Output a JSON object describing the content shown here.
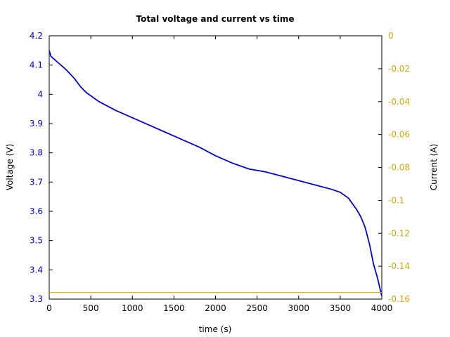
{
  "chart_data": {
    "type": "line",
    "title": "Total voltage and current vs time",
    "xlabel": "time (s)",
    "ylabel_left": "Voltage (V)",
    "ylabel_right": "Current (A)",
    "xlim": [
      0,
      4000
    ],
    "ylim_left": [
      3.3,
      4.2
    ],
    "ylim_right": [
      -0.16,
      0
    ],
    "x_ticks": [
      "0",
      "500",
      "1000",
      "1500",
      "2000",
      "2500",
      "3000",
      "3500",
      "4000"
    ],
    "x_tick_values": [
      0,
      500,
      1000,
      1500,
      2000,
      2500,
      3000,
      3500,
      4000
    ],
    "y_left_ticks": [
      "3.3",
      "3.4",
      "3.5",
      "3.6",
      "3.7",
      "3.8",
      "3.9",
      "4",
      "4.1",
      "4.2"
    ],
    "y_left_tick_values": [
      3.3,
      3.4,
      3.5,
      3.6,
      3.7,
      3.8,
      3.9,
      4.0,
      4.1,
      4.2
    ],
    "y_right_ticks": [
      "-0.16",
      "-0.14",
      "-0.12",
      "-0.1",
      "-0.08",
      "-0.06",
      "-0.04",
      "-0.02",
      "0"
    ],
    "y_right_tick_values": [
      -0.16,
      -0.14,
      -0.12,
      -0.1,
      -0.08,
      -0.06,
      -0.04,
      -0.02,
      0
    ],
    "grid": false,
    "colors": {
      "voltage": "#0000ee",
      "current": "#e0a800",
      "axis": "#000000"
    },
    "series": [
      {
        "axis": "left",
        "x": [
          0,
          20,
          100,
          200,
          300,
          380,
          450,
          500,
          600,
          800,
          1000,
          1200,
          1400,
          1600,
          1800,
          2000,
          2200,
          2400,
          2600,
          2800,
          3000,
          3200,
          3400,
          3500,
          3600,
          3650,
          3700,
          3750,
          3800,
          3850,
          3900,
          3950,
          4000
        ],
        "values": [
          4.15,
          4.13,
          4.11,
          4.085,
          4.055,
          4.025,
          4.005,
          3.995,
          3.975,
          3.945,
          3.92,
          3.895,
          3.87,
          3.845,
          3.82,
          3.79,
          3.765,
          3.745,
          3.735,
          3.72,
          3.705,
          3.69,
          3.675,
          3.665,
          3.645,
          3.625,
          3.605,
          3.58,
          3.545,
          3.49,
          3.42,
          3.37,
          3.31
        ]
      },
      {
        "axis": "right",
        "x": [
          0,
          4000
        ],
        "values": [
          -0.156,
          -0.156
        ]
      }
    ]
  }
}
